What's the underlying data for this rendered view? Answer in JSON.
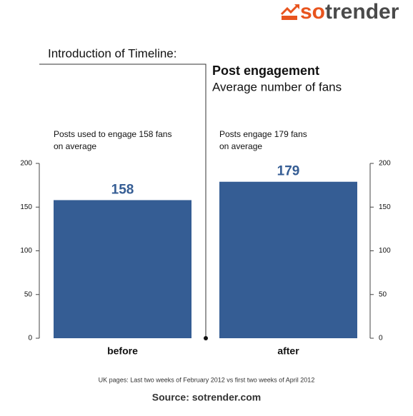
{
  "logo": "sotrender",
  "chart_data": {
    "type": "bar",
    "header": "Introduction of Timeline:",
    "title": "Post engagement",
    "subtitle": "Average number of fans",
    "categories": [
      "before",
      "after"
    ],
    "values": [
      158,
      179
    ],
    "annotations": [
      [
        "Posts used to engage 158 fans",
        "on average"
      ],
      [
        "Posts engage 179 fans",
        "on average"
      ]
    ],
    "color": "#355d94",
    "ylim": [
      0,
      200
    ],
    "yticks": [
      0,
      50,
      100,
      150,
      200
    ],
    "note": "UK pages: Last two weeks of February 2012 vs first two weeks of April 2012",
    "source": "Source: sotrender.com"
  }
}
